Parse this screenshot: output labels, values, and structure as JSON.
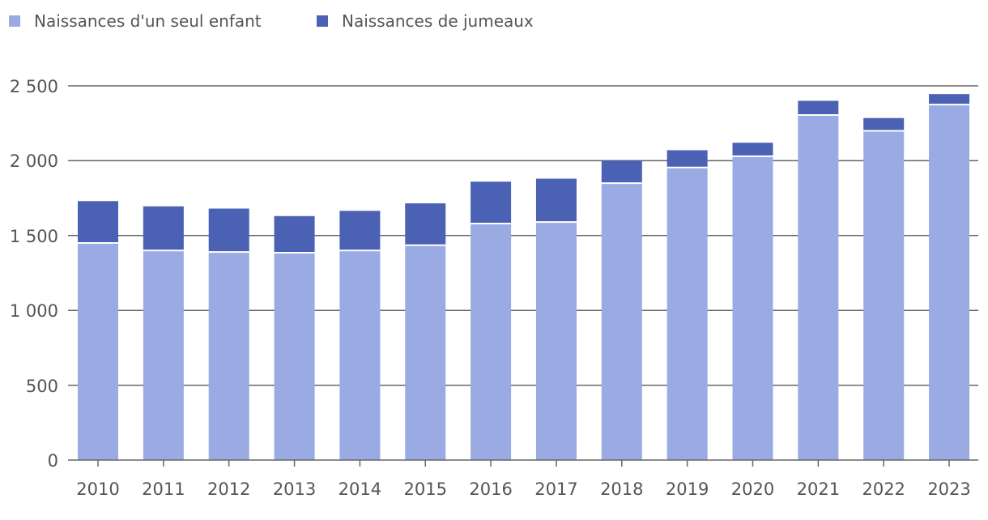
{
  "chart_data": {
    "type": "bar",
    "stacked": true,
    "title": "",
    "xlabel": "",
    "ylabel": "",
    "ylim": [
      0,
      2500
    ],
    "yticks": [
      0,
      500,
      1000,
      1500,
      2000,
      2500
    ],
    "ytick_labels": [
      "0",
      "500",
      "1 000",
      "1 500",
      "2 000",
      "2 500"
    ],
    "grid": true,
    "legend_position": "top-left",
    "categories": [
      "2010",
      "2011",
      "2012",
      "2013",
      "2014",
      "2015",
      "2016",
      "2017",
      "2018",
      "2019",
      "2020",
      "2021",
      "2022",
      "2023"
    ],
    "series": [
      {
        "name": "Naissances d'un seul enfant",
        "color": "#9AABE3",
        "values": [
          1450,
          1400,
          1390,
          1385,
          1400,
          1435,
          1580,
          1590,
          1850,
          1955,
          2030,
          2305,
          2200,
          2375
        ]
      },
      {
        "name": "Naissances de jumeaux",
        "color": "#4A61B4",
        "values": [
          280,
          295,
          290,
          245,
          265,
          280,
          280,
          290,
          150,
          115,
          90,
          95,
          85,
          70
        ]
      }
    ]
  }
}
